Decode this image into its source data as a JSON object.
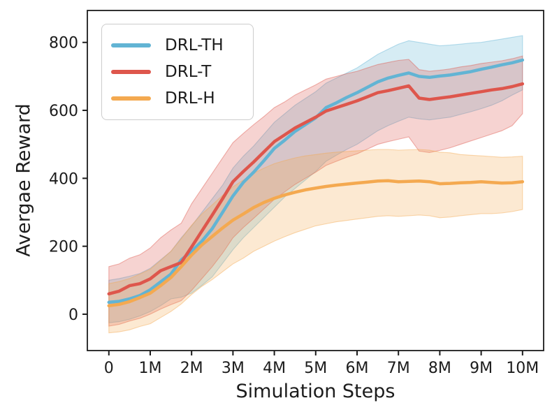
{
  "figure": {
    "xlabel": "Simulation Steps",
    "ylabel": "Avergae Reward",
    "background_color": "#ffffff",
    "frame_color": "#1c1c1c",
    "text_color": "#1c1c1c",
    "tick_font_size": 22,
    "axis_label_font_size": 27,
    "legend_font_size": 23
  },
  "chart_data": {
    "type": "line",
    "title": "",
    "xlabel": "Simulation Steps",
    "ylabel": "Avergae Reward",
    "x_unit": "simulation steps, millions",
    "xlim": [
      -0.52,
      10.51
    ],
    "ylim": [
      -107,
      894
    ],
    "x_ticks": [
      0,
      1,
      2,
      3,
      4,
      5,
      6,
      7,
      8,
      9,
      10
    ],
    "x_tick_labels": [
      "0",
      "1M",
      "2M",
      "3M",
      "4M",
      "5M",
      "6M",
      "7M",
      "8M",
      "9M",
      "10M"
    ],
    "y_ticks": [
      0,
      200,
      400,
      600,
      800
    ],
    "grid": "off",
    "legend_position": "upper-left",
    "band_opacity": 0.26,
    "x": [
      0,
      0.25,
      0.5,
      0.75,
      1,
      1.25,
      1.5,
      1.75,
      2,
      2.25,
      2.5,
      2.75,
      3,
      3.25,
      3.5,
      3.75,
      4,
      4.25,
      4.5,
      4.75,
      5,
      5.25,
      5.5,
      5.75,
      6,
      6.25,
      6.5,
      6.75,
      7,
      7.25,
      7.5,
      7.75,
      8,
      8.25,
      8.5,
      8.75,
      9,
      9.25,
      9.5,
      9.75,
      10
    ],
    "series": [
      {
        "name": "DRL-TH",
        "color": "#62b4d4",
        "mean": [
          35,
          38,
          45,
          55,
          72,
          95,
          118,
          160,
          185,
          215,
          252,
          300,
          348,
          388,
          418,
          452,
          488,
          512,
          538,
          558,
          578,
          608,
          622,
          638,
          652,
          668,
          684,
          695,
          703,
          710,
          700,
          697,
          701,
          704,
          709,
          714,
          721,
          727,
          734,
          740,
          748
        ],
        "lo": [
          -25,
          -22,
          -15,
          -5,
          8,
          25,
          45,
          50,
          62,
          85,
          110,
          150,
          190,
          225,
          255,
          285,
          315,
          345,
          370,
          395,
          420,
          450,
          468,
          485,
          500,
          520,
          540,
          555,
          568,
          580,
          575,
          572,
          576,
          580,
          588,
          596,
          605,
          615,
          628,
          645,
          660
        ],
        "hi": [
          100,
          105,
          112,
          120,
          135,
          160,
          185,
          225,
          260,
          300,
          340,
          380,
          430,
          465,
          495,
          530,
          565,
          590,
          615,
          635,
          655,
          680,
          695,
          710,
          725,
          745,
          765,
          780,
          795,
          805,
          800,
          795,
          790,
          792,
          795,
          798,
          800,
          805,
          810,
          815,
          820
        ]
      },
      {
        "name": "DRL-T",
        "color": "#de564c",
        "mean": [
          60,
          68,
          84,
          90,
          104,
          128,
          140,
          152,
          198,
          245,
          292,
          340,
          390,
          420,
          448,
          478,
          508,
          528,
          548,
          564,
          580,
          598,
          608,
          618,
          628,
          640,
          652,
          658,
          665,
          672,
          636,
          632,
          636,
          640,
          645,
          650,
          655,
          660,
          664,
          670,
          678
        ],
        "lo": [
          -35,
          -30,
          -20,
          -12,
          0,
          15,
          28,
          40,
          70,
          105,
          140,
          180,
          225,
          255,
          282,
          310,
          338,
          360,
          382,
          400,
          418,
          438,
          450,
          462,
          472,
          486,
          500,
          508,
          515,
          522,
          480,
          476,
          482,
          490,
          500,
          510,
          520,
          530,
          540,
          555,
          590
        ],
        "hi": [
          140,
          148,
          165,
          175,
          195,
          225,
          248,
          268,
          325,
          370,
          415,
          460,
          505,
          532,
          558,
          582,
          608,
          625,
          645,
          660,
          675,
          692,
          700,
          708,
          715,
          725,
          735,
          741,
          747,
          750,
          720,
          715,
          718,
          722,
          728,
          732,
          738,
          742,
          746,
          752,
          760
        ]
      },
      {
        "name": "DRL-H",
        "color": "#f4a950",
        "mean": [
          25,
          29,
          37,
          49,
          62,
          84,
          108,
          140,
          174,
          204,
          229,
          254,
          277,
          295,
          314,
          329,
          341,
          351,
          359,
          366,
          371,
          376,
          380,
          383,
          386,
          389,
          392,
          393,
          390,
          391,
          392,
          390,
          384,
          385,
          387,
          388,
          390,
          388,
          386,
          387,
          390
        ],
        "lo": [
          -55,
          -52,
          -46,
          -36,
          -28,
          -10,
          8,
          30,
          58,
          82,
          102,
          125,
          148,
          165,
          185,
          200,
          215,
          228,
          240,
          250,
          260,
          266,
          272,
          276,
          280,
          284,
          288,
          290,
          288,
          290,
          292,
          290,
          284,
          286,
          290,
          293,
          296,
          296,
          298,
          302,
          308
        ],
        "hi": [
          90,
          96,
          105,
          118,
          132,
          158,
          185,
          222,
          262,
          295,
          322,
          350,
          375,
          395,
          415,
          430,
          443,
          452,
          460,
          466,
          470,
          474,
          477,
          479,
          481,
          483,
          485,
          485,
          483,
          484,
          485,
          483,
          477,
          475,
          470,
          468,
          466,
          464,
          462,
          463,
          465
        ]
      }
    ]
  }
}
